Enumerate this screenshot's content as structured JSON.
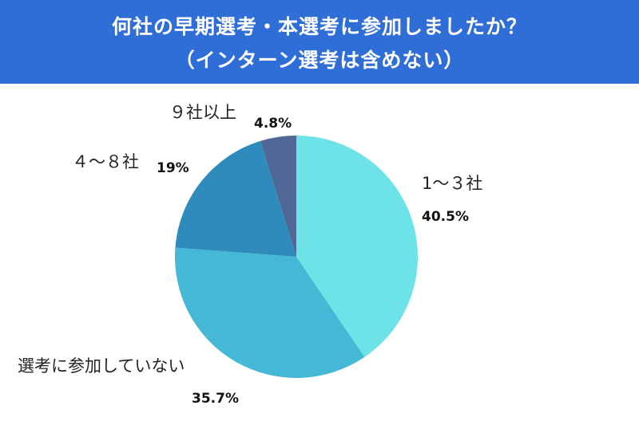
{
  "header": {
    "title_line1": "何社の早期選考・本選考に参加しましたか？",
    "title_line2": "（インターン選考は含めない）"
  },
  "chart_data": {
    "type": "pie",
    "title": "何社の早期選考・本選考に参加しましたか？（インターン選考は含めない）",
    "categories": [
      "1～３社",
      "選考に参加していない",
      "４～８社",
      "９社以上"
    ],
    "values": [
      40.5,
      35.7,
      19,
      4.8
    ],
    "value_labels": [
      "40.5%",
      "35.7%",
      "19%",
      "4.8%"
    ],
    "colors": [
      "#6de3e8",
      "#45b8d5",
      "#2f8bbb",
      "#4f6896"
    ],
    "start": "12 o'clock",
    "direction": "clockwise"
  }
}
